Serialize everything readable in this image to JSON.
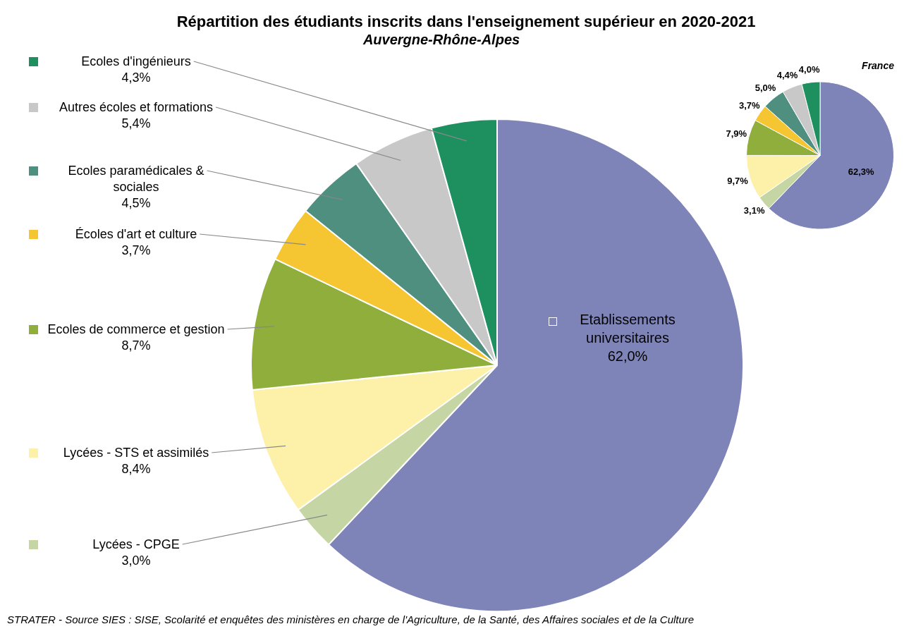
{
  "chart_data": [
    {
      "type": "pie",
      "title": "Répartition des étudiants inscrits dans l'enseignement supérieur en 2020-2021",
      "subtitle": "Auvergne-Rhône-Alpes",
      "categories": [
        "Etablissements universitaires",
        "Lycées - CPGE",
        "Lycées - STS et assimilés",
        "Ecoles de commerce et gestion",
        "Écoles d'art et culture",
        "Ecoles paramédicales & sociales",
        "Autres écoles et formations",
        "Ecoles d'ingénieurs"
      ],
      "values": [
        62.0,
        3.0,
        8.4,
        8.7,
        3.7,
        4.5,
        5.4,
        4.3
      ],
      "value_labels": [
        "62,0%",
        "3,0%",
        "8,4%",
        "8,7%",
        "3,7%",
        "4,5%",
        "5,4%",
        "4,3%"
      ],
      "colors": [
        "#7f84b8",
        "#c5d6a4",
        "#fdf0a8",
        "#8fae3c",
        "#f5c631",
        "#4f8f80",
        "#c8c8c8",
        "#1e9060"
      ],
      "legend": "left",
      "annotations": [
        "STRATER - Source SIES : SISE, Scolarité et enquêtes des ministères en charge de l'Agriculture, de la Santé, des Affaires sociales et de la Culture"
      ]
    },
    {
      "type": "pie",
      "title": "France",
      "categories": [
        null,
        null,
        null,
        null,
        null,
        null,
        null,
        null
      ],
      "values": [
        62.3,
        3.1,
        9.7,
        7.9,
        3.7,
        5.0,
        4.4,
        4.0
      ],
      "value_labels": [
        "62,3%",
        "3,1%",
        "9,7%",
        "7,9%",
        "3,7%",
        "5,0%",
        "4,4%",
        "4,0%"
      ],
      "colors": [
        "#7f84b8",
        "#c5d6a4",
        "#fdf0a8",
        "#8fae3c",
        "#f5c631",
        "#4f8f80",
        "#c8c8c8",
        "#1e9060"
      ]
    }
  ]
}
